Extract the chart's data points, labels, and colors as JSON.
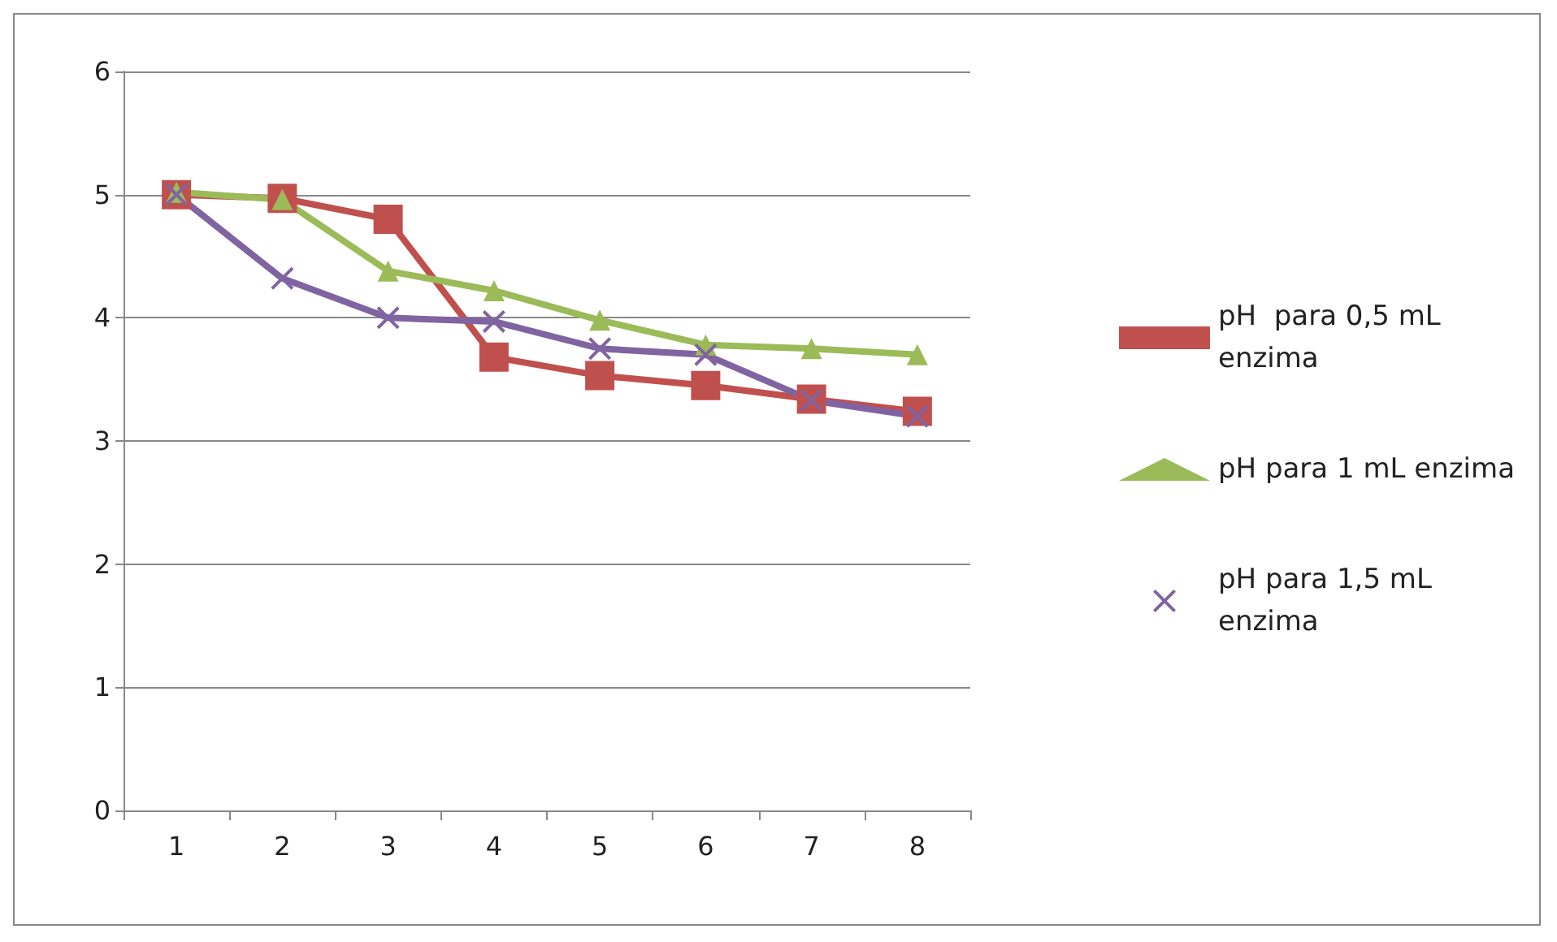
{
  "chart_data": {
    "type": "line",
    "categories": [
      "1",
      "2",
      "3",
      "4",
      "5",
      "6",
      "7",
      "8"
    ],
    "ylim": [
      0,
      6
    ],
    "yticks": [
      0,
      1,
      2,
      3,
      4,
      5,
      6
    ],
    "grid": "y",
    "legend": "right",
    "series": [
      {
        "name": "pH  para 0,5 mL enzima",
        "color": "#c0504d",
        "marker": "square",
        "values": [
          5.0,
          4.97,
          4.8,
          3.68,
          3.53,
          3.45,
          3.34,
          3.24
        ]
      },
      {
        "name": "pH para 1 mL enzima",
        "color": "#9bbb59",
        "marker": "triangle",
        "values": [
          5.02,
          4.96,
          4.38,
          4.22,
          3.98,
          3.78,
          3.75,
          3.7
        ]
      },
      {
        "name": "pH para 1,5 mL enzima",
        "color": "#8064a2",
        "marker": "cross",
        "values": [
          5.0,
          4.32,
          4.0,
          3.97,
          3.75,
          3.7,
          3.33,
          3.2
        ]
      }
    ]
  }
}
